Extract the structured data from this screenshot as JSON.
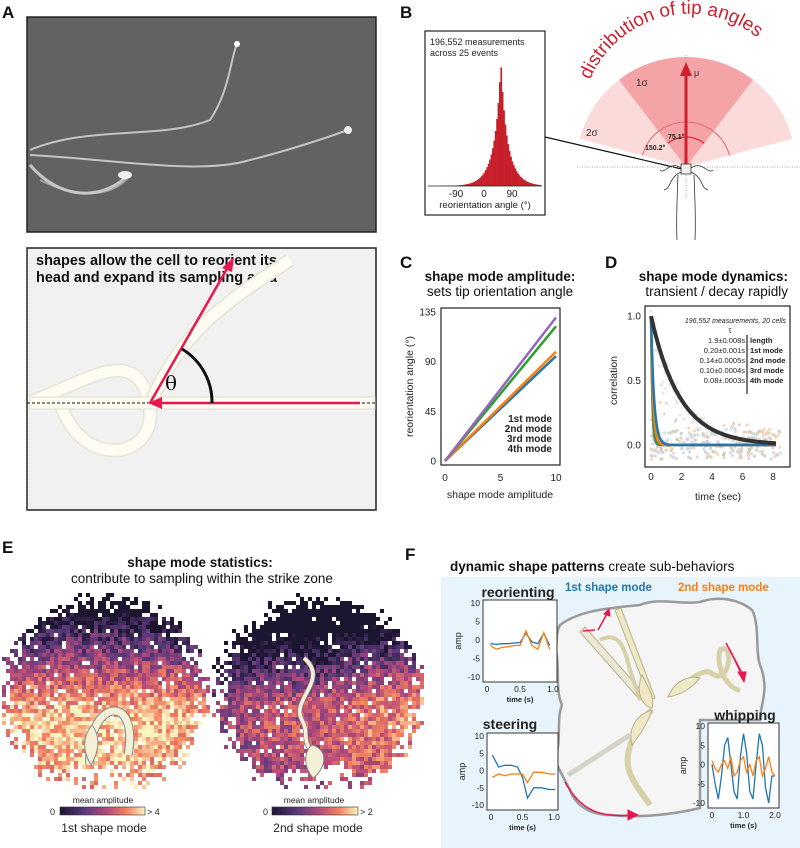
{
  "panels": {
    "A": "A",
    "B": "B",
    "C": "C",
    "D": "D",
    "E": "E",
    "F": "F"
  },
  "panelA": {
    "title_line1": "shapes allow the cell to reorient its",
    "title_line2": "head and expand its sampling area",
    "theta": "θ"
  },
  "panelB": {
    "hist_note_line1": "196,552 measurements",
    "hist_note_line2": "across 25 events",
    "hist_xticks": [
      "-90",
      "0",
      "90"
    ],
    "hist_xlabel": "reorientation angle (°)",
    "fan_title": "distribution of tip angles",
    "mu": "μ",
    "sigma1": "1σ",
    "sigma2": "2σ",
    "angle1": "75.1°",
    "angle2": "150.2°"
  },
  "chart_data": [
    {
      "type": "line",
      "id": "C",
      "title": "shape mode amplitude:",
      "subtitle": "sets tip orientation angle",
      "xlabel": "shape mode amplitude",
      "ylabel": "reorientation angle (°)",
      "xlim": [
        0,
        10
      ],
      "ylim": [
        0,
        135
      ],
      "xticks": [
        "0",
        "5",
        "10"
      ],
      "yticks": [
        "0",
        "45",
        "90",
        "135"
      ],
      "series": [
        {
          "name": "1st mode",
          "color": "#1f77b4",
          "x": [
            0,
            10
          ],
          "y": [
            0,
            95
          ]
        },
        {
          "name": "2nd mode",
          "color": "#ff7f0e",
          "x": [
            0,
            10
          ],
          "y": [
            0,
            99
          ]
        },
        {
          "name": "3rd mode",
          "color": "#2ca02c",
          "x": [
            0,
            10
          ],
          "y": [
            0,
            122
          ]
        },
        {
          "name": "4th mode",
          "color": "#9467bd",
          "x": [
            0,
            10
          ],
          "y": [
            0,
            130
          ]
        }
      ]
    },
    {
      "type": "line",
      "id": "D",
      "title": "shape mode dynamics:",
      "subtitle": "transient / decay rapidly",
      "note": "196,552 measurements, 20 cells",
      "tau_symbol": "τ",
      "xlabel": "time (sec)",
      "ylabel": "correlation",
      "xlim": [
        0,
        8
      ],
      "ylim": [
        0,
        1
      ],
      "xticks": [
        "0",
        "2",
        "4",
        "6",
        "8"
      ],
      "yticks": [
        "0.0",
        "0.5",
        "1.0"
      ],
      "series": [
        {
          "name": "length",
          "tau": "1.9±0.008s",
          "tau_s": 1.9,
          "color": "#333333"
        },
        {
          "name": "1st mode",
          "tau": "0.20±0.001s",
          "tau_s": 0.2,
          "color": "#1f77b4"
        },
        {
          "name": "2nd mode",
          "tau": "0.14±0.0005s",
          "tau_s": 0.14,
          "color": "#ff7f0e"
        },
        {
          "name": "3rd mode",
          "tau": "0.10±0.0004s",
          "tau_s": 0.1,
          "color": "#2ca02c"
        },
        {
          "name": "4th mode",
          "tau": "0.08±.0003s",
          "tau_s": 0.08,
          "color": "#9467bd"
        }
      ]
    },
    {
      "type": "line",
      "id": "F-reorienting",
      "title": "reorienting",
      "ylabel": "amp",
      "xlabel": "time (s)",
      "xlim": [
        0,
        1
      ],
      "ylim": [
        -10,
        10
      ],
      "xticks": [
        "0",
        "0.5",
        "1.0"
      ],
      "yticks": [
        "10",
        "5",
        "0",
        "-5",
        "-10"
      ],
      "x": [
        0.05,
        0.14,
        0.23,
        0.32,
        0.41,
        0.5,
        0.59,
        0.68,
        0.77,
        0.86,
        0.95
      ],
      "series": [
        {
          "name": "1st shape mode",
          "values": [
            -1,
            -1.2,
            -1,
            -1,
            -0.8,
            -0.7,
            1.8,
            -0.5,
            -1,
            1.8,
            -1.5
          ]
        },
        {
          "name": "2nd shape mode",
          "values": [
            -1.5,
            -2.5,
            -2,
            -1.8,
            -1.5,
            -1.5,
            2.5,
            -1.5,
            -2.5,
            2,
            -2.5
          ]
        }
      ]
    },
    {
      "type": "line",
      "id": "F-steering",
      "title": "steering",
      "ylabel": "amp",
      "xlabel": "time (s)",
      "xlim": [
        0,
        1
      ],
      "ylim": [
        -10,
        10
      ],
      "xticks": [
        "0",
        "0.5",
        "1.0"
      ],
      "yticks": [
        "10",
        "5",
        "0",
        "-5",
        "-10"
      ],
      "x": [
        0.02,
        0.12,
        0.22,
        0.32,
        0.42,
        0.5,
        0.58,
        0.68,
        0.8,
        0.92,
        1.02
      ],
      "series": [
        {
          "name": "1st shape mode",
          "values": [
            4.5,
            1,
            1.5,
            1.5,
            1,
            -2,
            -8,
            -5,
            -5,
            -5.5,
            -5.5
          ]
        },
        {
          "name": "2nd shape mode",
          "values": [
            -2,
            -1,
            -1.5,
            -1,
            -1,
            -1,
            -3.5,
            -0.5,
            -0.5,
            -1,
            -1
          ]
        }
      ]
    },
    {
      "type": "line",
      "id": "F-whipping",
      "title": "whipping",
      "ylabel": "amp",
      "xlabel": "time (s)",
      "xlim": [
        0,
        2
      ],
      "ylim": [
        -10,
        10
      ],
      "xticks": [
        "0",
        "1.0",
        "2.0"
      ],
      "yticks": [
        "10",
        "5",
        "0",
        "-5",
        "-10"
      ],
      "x": [
        0,
        0.1,
        0.2,
        0.3,
        0.4,
        0.5,
        0.6,
        0.7,
        0.8,
        0.9,
        1.0,
        1.1,
        1.2,
        1.3,
        1.4,
        1.5,
        1.6,
        1.7,
        1.8,
        1.9,
        2.0
      ],
      "series": [
        {
          "name": "1st shape mode",
          "values": [
            0,
            -5,
            -9,
            -3,
            5,
            7,
            0,
            -7,
            -9,
            2,
            8,
            3,
            -7,
            -9,
            0,
            8,
            5,
            -6,
            -10,
            -3,
            -3
          ]
        },
        {
          "name": "2nd shape mode",
          "values": [
            1,
            -1,
            -2,
            0,
            1,
            -1,
            2,
            -3,
            -2,
            1,
            2,
            -2,
            0,
            -3,
            1,
            2,
            -3,
            -1,
            2,
            -2,
            -3
          ]
        }
      ]
    }
  ],
  "panelE": {
    "title": "shape mode statistics:",
    "subtitle": "contribute to sampling within the strike zone",
    "maps": [
      {
        "colorbar_label": "mean amplitude",
        "min": "0",
        "max": "> 4",
        "caption": "1st shape mode"
      },
      {
        "colorbar_label": "mean amplitude",
        "min": "0",
        "max": "> 2",
        "caption": "2nd shape mode"
      }
    ]
  },
  "panelF": {
    "title_bold": "dynamic shape patterns",
    "title_rest": " create sub-behaviors",
    "legend1": "1st shape mode",
    "legend2": "2nd shape mode",
    "colors": {
      "mode1": "#1f77b4",
      "mode2": "#ff7f0e",
      "bg": "#e8f4fb",
      "arrow": "#e8174f"
    }
  }
}
